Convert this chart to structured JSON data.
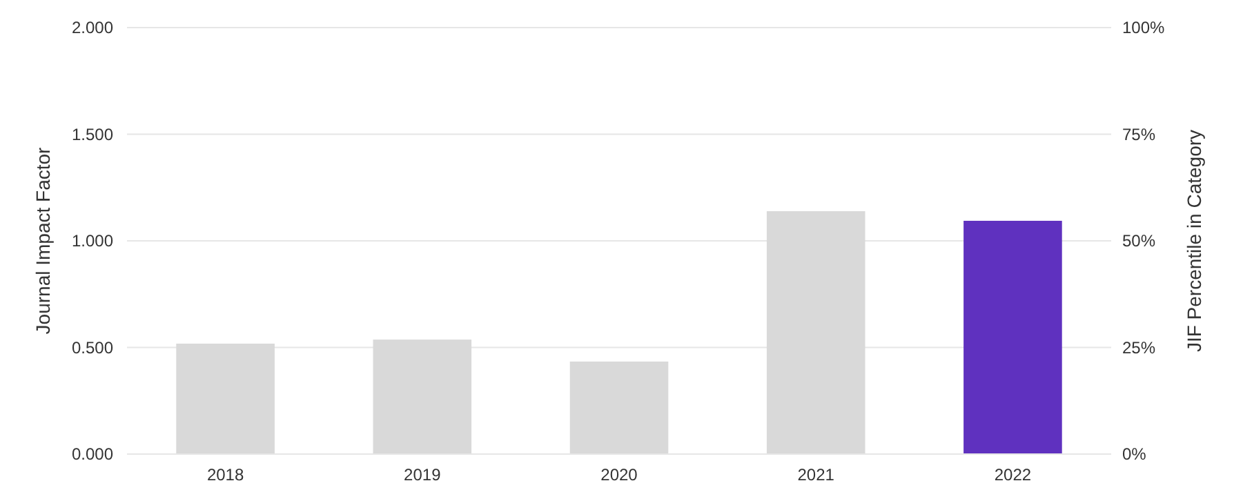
{
  "chart_data": {
    "type": "bar",
    "ylabel": "Journal Impact Factor",
    "y2label": "JIF Percentile in Category",
    "categories": [
      "2018",
      "2019",
      "2020",
      "2021",
      "2022"
    ],
    "values": [
      0.518,
      0.537,
      0.434,
      1.139,
      1.094
    ],
    "colors": [
      "#d9d9d9",
      "#d9d9d9",
      "#d9d9d9",
      "#d9d9d9",
      "#5f31bf"
    ],
    "ylim": [
      0,
      2
    ],
    "yticks": [
      {
        "value": 0,
        "label": "0.000"
      },
      {
        "value": 0.5,
        "label": "0.500"
      },
      {
        "value": 1,
        "label": "1.000"
      },
      {
        "value": 1.5,
        "label": "1.500"
      },
      {
        "value": 2,
        "label": "2.000"
      }
    ],
    "y2lim": [
      0,
      100
    ],
    "y2ticks": [
      {
        "value": 0,
        "label": "0%"
      },
      {
        "value": 25,
        "label": "25%"
      },
      {
        "value": 50,
        "label": "50%"
      },
      {
        "value": 75,
        "label": "75%"
      },
      {
        "value": 100,
        "label": "100%"
      }
    ],
    "grid": "y"
  }
}
